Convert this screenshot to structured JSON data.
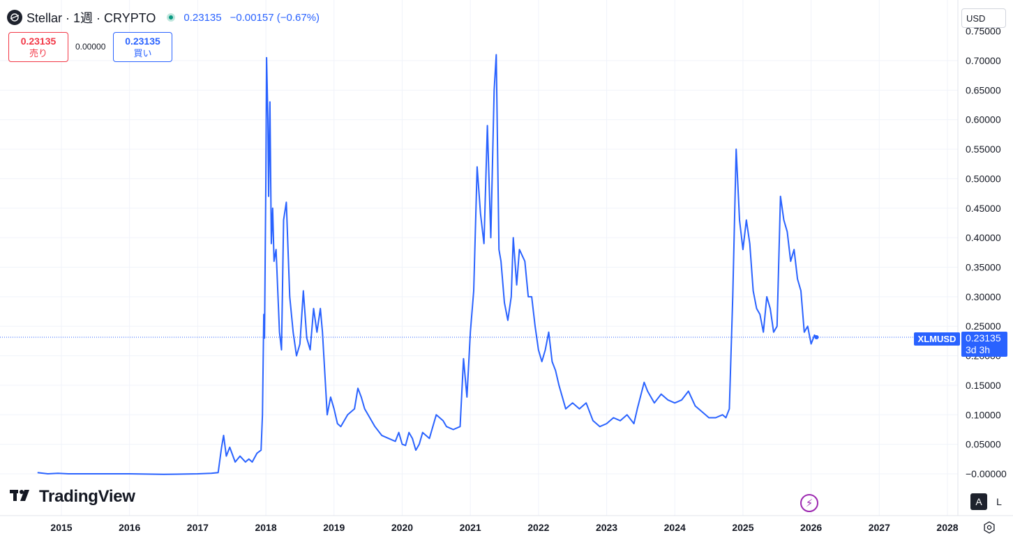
{
  "header": {
    "symbol_title": "Stellar · 1週 · CRYPTO",
    "last_price": "0.23135",
    "change": "−0.00157 (−0.67%)",
    "status_color": "#089981"
  },
  "trade": {
    "sell_price": "0.23135",
    "sell_label": "売り",
    "spread": "0.00000",
    "buy_price": "0.23135",
    "buy_label": "買い"
  },
  "currency": "USD",
  "price_label": {
    "symbol": "XLMUSD",
    "price": "0.23135",
    "countdown": "3d 3h"
  },
  "branding": {
    "logo_text": "TradingView"
  },
  "scale_buttons": {
    "auto": "A",
    "log": "L"
  },
  "icons": {
    "settings": "gear-icon",
    "flash": "flash-icon",
    "logo": "tradingview-logo-icon",
    "symbol": "stellar-logo-icon"
  },
  "colors": {
    "line": "#2962ff",
    "sell": "#f23645",
    "buy": "#2962ff"
  },
  "chart_data": {
    "type": "line",
    "title": "Stellar · 1週 · CRYPTO",
    "series": [
      {
        "name": "XLMUSD",
        "points": [
          [
            2014.65,
            0.002
          ],
          [
            2014.8,
            0.0
          ],
          [
            2014.95,
            0.001
          ],
          [
            2015.1,
            0.0
          ],
          [
            2015.5,
            0.0
          ],
          [
            2016.0,
            0.0
          ],
          [
            2016.5,
            -0.001
          ],
          [
            2017.0,
            0.0
          ],
          [
            2017.2,
            0.001
          ],
          [
            2017.3,
            0.002
          ],
          [
            2017.35,
            0.045
          ],
          [
            2017.38,
            0.065
          ],
          [
            2017.42,
            0.03
          ],
          [
            2017.47,
            0.045
          ],
          [
            2017.55,
            0.02
          ],
          [
            2017.62,
            0.03
          ],
          [
            2017.7,
            0.02
          ],
          [
            2017.75,
            0.025
          ],
          [
            2017.8,
            0.02
          ],
          [
            2017.87,
            0.035
          ],
          [
            2017.93,
            0.04
          ],
          [
            2017.95,
            0.1
          ],
          [
            2017.97,
            0.27
          ],
          [
            2017.98,
            0.23
          ],
          [
            2018.0,
            0.5
          ],
          [
            2018.01,
            0.705
          ],
          [
            2018.03,
            0.6
          ],
          [
            2018.04,
            0.47
          ],
          [
            2018.06,
            0.63
          ],
          [
            2018.08,
            0.39
          ],
          [
            2018.1,
            0.45
          ],
          [
            2018.12,
            0.36
          ],
          [
            2018.15,
            0.38
          ],
          [
            2018.2,
            0.24
          ],
          [
            2018.23,
            0.21
          ],
          [
            2018.26,
            0.43
          ],
          [
            2018.3,
            0.46
          ],
          [
            2018.35,
            0.3
          ],
          [
            2018.4,
            0.24
          ],
          [
            2018.45,
            0.2
          ],
          [
            2018.5,
            0.22
          ],
          [
            2018.55,
            0.31
          ],
          [
            2018.6,
            0.23
          ],
          [
            2018.65,
            0.21
          ],
          [
            2018.7,
            0.28
          ],
          [
            2018.75,
            0.24
          ],
          [
            2018.8,
            0.28
          ],
          [
            2018.83,
            0.24
          ],
          [
            2018.87,
            0.16
          ],
          [
            2018.9,
            0.1
          ],
          [
            2018.95,
            0.13
          ],
          [
            2019.0,
            0.11
          ],
          [
            2019.05,
            0.085
          ],
          [
            2019.1,
            0.08
          ],
          [
            2019.15,
            0.09
          ],
          [
            2019.2,
            0.1
          ],
          [
            2019.3,
            0.11
          ],
          [
            2019.35,
            0.145
          ],
          [
            2019.4,
            0.13
          ],
          [
            2019.45,
            0.11
          ],
          [
            2019.5,
            0.1
          ],
          [
            2019.6,
            0.08
          ],
          [
            2019.7,
            0.065
          ],
          [
            2019.8,
            0.06
          ],
          [
            2019.9,
            0.055
          ],
          [
            2019.95,
            0.07
          ],
          [
            2020.0,
            0.05
          ],
          [
            2020.05,
            0.048
          ],
          [
            2020.1,
            0.07
          ],
          [
            2020.15,
            0.06
          ],
          [
            2020.2,
            0.04
          ],
          [
            2020.25,
            0.05
          ],
          [
            2020.3,
            0.07
          ],
          [
            2020.4,
            0.06
          ],
          [
            2020.5,
            0.1
          ],
          [
            2020.6,
            0.09
          ],
          [
            2020.65,
            0.08
          ],
          [
            2020.75,
            0.075
          ],
          [
            2020.85,
            0.08
          ],
          [
            2020.9,
            0.195
          ],
          [
            2020.95,
            0.13
          ],
          [
            2021.0,
            0.24
          ],
          [
            2021.05,
            0.31
          ],
          [
            2021.1,
            0.52
          ],
          [
            2021.15,
            0.44
          ],
          [
            2021.2,
            0.39
          ],
          [
            2021.25,
            0.59
          ],
          [
            2021.3,
            0.4
          ],
          [
            2021.35,
            0.65
          ],
          [
            2021.38,
            0.71
          ],
          [
            2021.42,
            0.38
          ],
          [
            2021.45,
            0.36
          ],
          [
            2021.5,
            0.29
          ],
          [
            2021.55,
            0.26
          ],
          [
            2021.6,
            0.3
          ],
          [
            2021.63,
            0.4
          ],
          [
            2021.68,
            0.32
          ],
          [
            2021.72,
            0.38
          ],
          [
            2021.8,
            0.36
          ],
          [
            2021.85,
            0.3
          ],
          [
            2021.9,
            0.3
          ],
          [
            2021.95,
            0.25
          ],
          [
            2022.0,
            0.21
          ],
          [
            2022.05,
            0.19
          ],
          [
            2022.1,
            0.21
          ],
          [
            2022.15,
            0.24
          ],
          [
            2022.2,
            0.19
          ],
          [
            2022.25,
            0.175
          ],
          [
            2022.3,
            0.15
          ],
          [
            2022.4,
            0.11
          ],
          [
            2022.5,
            0.12
          ],
          [
            2022.6,
            0.11
          ],
          [
            2022.7,
            0.12
          ],
          [
            2022.8,
            0.09
          ],
          [
            2022.9,
            0.08
          ],
          [
            2023.0,
            0.085
          ],
          [
            2023.1,
            0.095
          ],
          [
            2023.2,
            0.09
          ],
          [
            2023.3,
            0.1
          ],
          [
            2023.4,
            0.085
          ],
          [
            2023.45,
            0.11
          ],
          [
            2023.55,
            0.155
          ],
          [
            2023.6,
            0.14
          ],
          [
            2023.7,
            0.12
          ],
          [
            2023.8,
            0.135
          ],
          [
            2023.9,
            0.125
          ],
          [
            2024.0,
            0.12
          ],
          [
            2024.1,
            0.125
          ],
          [
            2024.2,
            0.14
          ],
          [
            2024.3,
            0.115
          ],
          [
            2024.4,
            0.105
          ],
          [
            2024.5,
            0.095
          ],
          [
            2024.6,
            0.095
          ],
          [
            2024.7,
            0.1
          ],
          [
            2024.75,
            0.095
          ],
          [
            2024.8,
            0.11
          ],
          [
            2024.85,
            0.3
          ],
          [
            2024.9,
            0.55
          ],
          [
            2024.95,
            0.43
          ],
          [
            2025.0,
            0.38
          ],
          [
            2025.05,
            0.43
          ],
          [
            2025.1,
            0.39
          ],
          [
            2025.15,
            0.31
          ],
          [
            2025.2,
            0.28
          ],
          [
            2025.25,
            0.27
          ],
          [
            2025.3,
            0.24
          ],
          [
            2025.35,
            0.3
          ],
          [
            2025.4,
            0.28
          ],
          [
            2025.45,
            0.24
          ],
          [
            2025.5,
            0.25
          ],
          [
            2025.55,
            0.47
          ],
          [
            2025.6,
            0.43
          ],
          [
            2025.65,
            0.41
          ],
          [
            2025.7,
            0.36
          ],
          [
            2025.75,
            0.38
          ],
          [
            2025.8,
            0.33
          ],
          [
            2025.85,
            0.31
          ],
          [
            2025.9,
            0.24
          ],
          [
            2025.95,
            0.25
          ],
          [
            2026.0,
            0.22
          ],
          [
            2026.05,
            0.235
          ],
          [
            2026.08,
            0.23135
          ]
        ]
      }
    ],
    "x_axis": {
      "ticks": [
        "2015",
        "2016",
        "2017",
        "2018",
        "2019",
        "2020",
        "2021",
        "2022",
        "2023",
        "2024",
        "2025",
        "2026",
        "2027",
        "2028"
      ],
      "range": [
        2014.4,
        2028.2
      ]
    },
    "y_axis": {
      "ticks": [
        "0.70000",
        "0.65000",
        "0.60000",
        "0.55000",
        "0.50000",
        "0.45000",
        "0.40000",
        "0.35000",
        "0.30000",
        "0.25000",
        "0.20000",
        "0.15000",
        "0.10000",
        "0.05000",
        "−0.00000"
      ],
      "range": [
        -0.05,
        0.75
      ],
      "position": "right"
    },
    "last_value_line": 0.23135,
    "grid": true
  }
}
